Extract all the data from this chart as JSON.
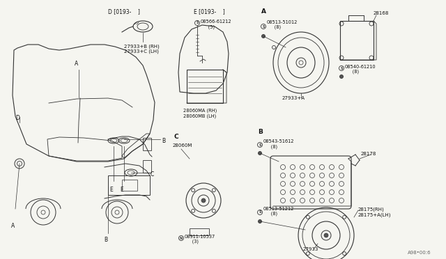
{
  "bg_color": "#f5f5f0",
  "line_color": "#333333",
  "text_color": "#111111",
  "fig_width": 6.4,
  "fig_height": 3.72,
  "dpi": 100,
  "labels": {
    "D_header": "D [0193-    ]",
    "E_header": "E [0193-    ]",
    "A_header": "A",
    "B_header": "B",
    "C_header": "C",
    "part_27933B": "27933+B (RH)\n27933+C (LH)",
    "part_28060MA": "28060MA (RH)\n28060MB (LH)",
    "part_08566": "08566-61212\n     (5)",
    "part_08513_A": "08513-51012\n     (8)",
    "part_08540": "08540-61210\n     (8)",
    "part_28168": "28168",
    "part_27933A": "27933+A",
    "part_28060M": "28060M",
    "part_08911": "08911-10537\n     (3)",
    "part_08543": "08543-51612\n     (8)",
    "part_08513_B": "08513-51212\n     (8)",
    "part_28178": "28178",
    "part_28175": "28175(RH)\n28175+A(LH)",
    "part_27933": "27933",
    "watermark": "A98•00:6"
  }
}
